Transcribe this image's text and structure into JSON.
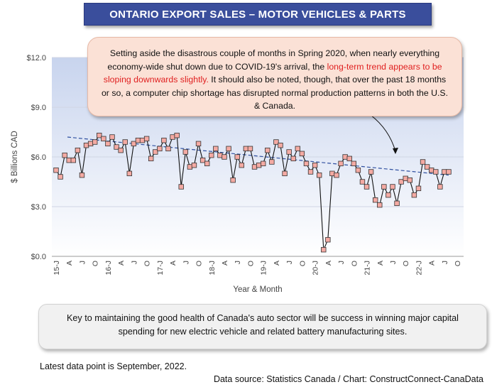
{
  "header": {
    "title": "ONTARIO EXPORT SALES – MOTOR VEHICLES & PARTS"
  },
  "callout": {
    "text_before": "Setting aside the disastrous couple of months in Spring 2020, when nearly everything economy-wide shut down due to COVID-19's arrival, the ",
    "highlight": "long-term trend appears to be sloping downwards slightly.",
    "text_after": " It should also be noted, though, that over the past 18 months or so, a computer chip shortage has disrupted normal production patterns in both the U.S. & Canada."
  },
  "key_message": "Key to maintaining the good health of Canada's auto sector will be success in winning major capital spending for new electric vehicle and related battery manufacturing sites.",
  "footer": {
    "latest": "Latest data point is September, 2022.",
    "source": "Data source: Statistics Canada / Chart: ConstructConnect-CanaData"
  },
  "colors": {
    "title_bg": "#3a4e9c",
    "marker_fill": "#f4aaa3",
    "trend": "#3050a0",
    "highlight_text": "#e02020"
  },
  "chart_data": {
    "type": "line",
    "title": "ONTARIO EXPORT SALES – MOTOR VEHICLES & PARTS",
    "xlabel": "Year & Month",
    "ylabel": "$ Billions CAD",
    "ylim": [
      0,
      12
    ],
    "yticks": [
      "$0.0",
      "$3.0",
      "$6.0",
      "$9.0",
      "$12.0"
    ],
    "ytick_values": [
      0,
      3,
      6,
      9,
      12
    ],
    "xtick_labels": [
      "15-J",
      "A",
      "J",
      "O",
      "16-J",
      "A",
      "J",
      "O",
      "17-J",
      "A",
      "J",
      "O",
      "18-J",
      "A",
      "J",
      "O",
      "19-J",
      "A",
      "J",
      "O",
      "20-J",
      "A",
      "J",
      "O",
      "21-J",
      "A",
      "J",
      "O",
      "22-J",
      "A",
      "J",
      "O"
    ],
    "x_start": "2015-01",
    "x_end": "2022-09",
    "grid": "horizontal",
    "series": [
      {
        "values": [
          5.2,
          4.8,
          6.1,
          5.8,
          5.8,
          6.4,
          4.9,
          6.7,
          6.8,
          6.9,
          7.3,
          7.1,
          6.8,
          7.2,
          6.6,
          6.4,
          6.9,
          5.0,
          6.8,
          7.0,
          7.0,
          7.1,
          5.9,
          6.3,
          6.5,
          7.0,
          6.5,
          7.2,
          7.3,
          4.2,
          6.3,
          5.4,
          5.5,
          6.8,
          5.8,
          5.6,
          6.1,
          6.5,
          6.1,
          6.0,
          6.5,
          4.6,
          6.0,
          5.5,
          6.5,
          6.5,
          5.4,
          5.5,
          5.6,
          6.4,
          5.7,
          6.9,
          6.7,
          5.0,
          6.3,
          5.9,
          6.5,
          6.2,
          5.6,
          5.1,
          5.5,
          4.9,
          0.4,
          1.0,
          5.0,
          4.9,
          5.6,
          6.0,
          5.9,
          5.6,
          5.2,
          4.5,
          4.2,
          5.1,
          3.4,
          3.1,
          4.2,
          3.7,
          4.2,
          3.2,
          4.5,
          4.7,
          4.6,
          3.7,
          4.1,
          5.7,
          5.4,
          5.2,
          5.1,
          4.2,
          5.1,
          5.1
        ]
      },
      {
        "type": "linear-trend",
        "values": [
          7.2,
          4.9
        ]
      }
    ]
  }
}
